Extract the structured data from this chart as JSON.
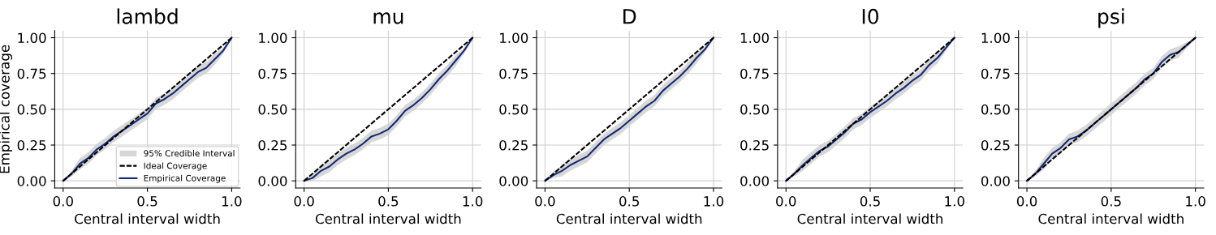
{
  "chart_data": [
    {
      "type": "line",
      "title": "lambd",
      "xlabel": "Central interval width",
      "ylabel": "Empirical coverage",
      "xlim": [
        -0.05,
        1.05
      ],
      "ylim": [
        -0.05,
        1.05
      ],
      "xticks": [
        {
          "value": 0,
          "label": "0.0"
        },
        {
          "value": 0.5,
          "label": "0.5"
        },
        {
          "value": 1,
          "label": "1.0"
        }
      ],
      "yticks": [
        {
          "value": 0,
          "label": "0.00"
        },
        {
          "value": 0.25,
          "label": "0.25"
        },
        {
          "value": 0.5,
          "label": "0.50"
        },
        {
          "value": 0.75,
          "label": "0.75"
        },
        {
          "value": 1,
          "label": "1.00"
        }
      ],
      "grid": true,
      "legend": "bottom right",
      "annotations": [
        "95% Credible Interval"
      ],
      "series": [
        {
          "name": "Ideal Coverage",
          "color": "#000000",
          "line_style": "dashed",
          "x": [
            0,
            1
          ],
          "values": [
            0,
            1
          ]
        },
        {
          "name": "Empirical Coverage",
          "color": "#132a74",
          "line_style": "solid",
          "x": [
            0,
            0.05,
            0.1,
            0.15,
            0.2,
            0.25,
            0.3,
            0.35,
            0.4,
            0.45,
            0.5,
            0.55,
            0.6,
            0.65,
            0.7,
            0.75,
            0.8,
            0.85,
            0.9,
            0.95,
            1
          ],
          "values": [
            0,
            0.05,
            0.12,
            0.16,
            0.22,
            0.26,
            0.31,
            0.35,
            0.39,
            0.43,
            0.47,
            0.54,
            0.57,
            0.61,
            0.66,
            0.71,
            0.76,
            0.79,
            0.85,
            0.91,
            1
          ],
          "lower": [
            0,
            0.03,
            0.08,
            0.12,
            0.18,
            0.22,
            0.27,
            0.31,
            0.35,
            0.39,
            0.43,
            0.5,
            0.53,
            0.57,
            0.62,
            0.67,
            0.72,
            0.75,
            0.81,
            0.89,
            1
          ],
          "upper": [
            0,
            0.07,
            0.16,
            0.2,
            0.26,
            0.3,
            0.35,
            0.39,
            0.43,
            0.47,
            0.51,
            0.58,
            0.61,
            0.65,
            0.7,
            0.75,
            0.8,
            0.83,
            0.89,
            0.93,
            1
          ]
        }
      ]
    },
    {
      "type": "line",
      "title": "mu",
      "xlabel": "Central interval width",
      "xlim": [
        -0.05,
        1.05
      ],
      "ylim": [
        -0.05,
        1.05
      ],
      "xticks": [
        {
          "value": 0,
          "label": "0.0"
        },
        {
          "value": 0.5,
          "label": "0.5"
        },
        {
          "value": 1,
          "label": "1.0"
        }
      ],
      "yticks": [
        {
          "value": 0,
          "label": "0.00"
        },
        {
          "value": 0.25,
          "label": "0.25"
        },
        {
          "value": 0.5,
          "label": "0.50"
        },
        {
          "value": 0.75,
          "label": "0.75"
        },
        {
          "value": 1,
          "label": "1.00"
        }
      ],
      "grid": true,
      "series": [
        {
          "color": "#000000",
          "line_style": "dashed",
          "x": [
            0,
            1
          ],
          "values": [
            0,
            1
          ]
        },
        {
          "color": "#132a74",
          "line_style": "solid",
          "x": [
            0,
            0.05,
            0.1,
            0.15,
            0.2,
            0.25,
            0.3,
            0.35,
            0.4,
            0.45,
            0.5,
            0.55,
            0.6,
            0.65,
            0.7,
            0.75,
            0.8,
            0.85,
            0.9,
            0.95,
            1
          ],
          "values": [
            0,
            0.02,
            0.07,
            0.1,
            0.15,
            0.19,
            0.22,
            0.26,
            0.31,
            0.33,
            0.36,
            0.42,
            0.49,
            0.53,
            0.58,
            0.64,
            0.71,
            0.77,
            0.84,
            0.91,
            1
          ],
          "lower": [
            0,
            0,
            0.03,
            0.06,
            0.11,
            0.15,
            0.18,
            0.22,
            0.27,
            0.29,
            0.32,
            0.38,
            0.45,
            0.49,
            0.54,
            0.6,
            0.67,
            0.73,
            0.8,
            0.89,
            1
          ],
          "upper": [
            0,
            0.04,
            0.11,
            0.14,
            0.19,
            0.23,
            0.26,
            0.3,
            0.35,
            0.37,
            0.4,
            0.46,
            0.53,
            0.57,
            0.62,
            0.68,
            0.75,
            0.81,
            0.88,
            0.93,
            1
          ]
        }
      ]
    },
    {
      "type": "line",
      "title": "D",
      "xlabel": "Central interval width",
      "xlim": [
        -0.05,
        1.05
      ],
      "ylim": [
        -0.05,
        1.05
      ],
      "xticks": [
        {
          "value": 0,
          "label": "0.0"
        },
        {
          "value": 0.5,
          "label": "0.5"
        },
        {
          "value": 1,
          "label": "1.0"
        }
      ],
      "yticks": [
        {
          "value": 0,
          "label": "0.00"
        },
        {
          "value": 0.25,
          "label": "0.25"
        },
        {
          "value": 0.5,
          "label": "0.50"
        },
        {
          "value": 0.75,
          "label": "0.75"
        },
        {
          "value": 1,
          "label": "1.00"
        }
      ],
      "grid": true,
      "series": [
        {
          "color": "#000000",
          "line_style": "dashed",
          "x": [
            0,
            1
          ],
          "values": [
            0,
            1
          ]
        },
        {
          "color": "#132a74",
          "line_style": "solid",
          "x": [
            0,
            0.05,
            0.1,
            0.15,
            0.2,
            0.25,
            0.3,
            0.35,
            0.4,
            0.45,
            0.5,
            0.55,
            0.6,
            0.65,
            0.7,
            0.75,
            0.8,
            0.85,
            0.9,
            0.95,
            1
          ],
          "values": [
            0,
            0.04,
            0.07,
            0.11,
            0.14,
            0.17,
            0.23,
            0.29,
            0.33,
            0.37,
            0.42,
            0.47,
            0.52,
            0.56,
            0.63,
            0.68,
            0.73,
            0.79,
            0.86,
            0.92,
            1
          ],
          "lower": [
            0,
            0.02,
            0.03,
            0.07,
            0.1,
            0.13,
            0.19,
            0.25,
            0.29,
            0.33,
            0.38,
            0.43,
            0.48,
            0.52,
            0.59,
            0.64,
            0.69,
            0.75,
            0.82,
            0.9,
            1
          ],
          "upper": [
            0,
            0.06,
            0.11,
            0.15,
            0.18,
            0.21,
            0.27,
            0.33,
            0.37,
            0.41,
            0.46,
            0.51,
            0.56,
            0.6,
            0.67,
            0.72,
            0.77,
            0.83,
            0.9,
            0.94,
            1
          ]
        }
      ]
    },
    {
      "type": "line",
      "title": "I0",
      "xlabel": "Central interval width",
      "xlim": [
        -0.05,
        1.05
      ],
      "ylim": [
        -0.05,
        1.05
      ],
      "xticks": [
        {
          "value": 0,
          "label": "0.0"
        },
        {
          "value": 0.5,
          "label": "0.5"
        },
        {
          "value": 1,
          "label": "1.0"
        }
      ],
      "yticks": [
        {
          "value": 0,
          "label": "0.00"
        },
        {
          "value": 0.25,
          "label": "0.25"
        },
        {
          "value": 0.5,
          "label": "0.50"
        },
        {
          "value": 0.75,
          "label": "0.75"
        },
        {
          "value": 1,
          "label": "1.00"
        }
      ],
      "grid": true,
      "series": [
        {
          "color": "#000000",
          "line_style": "dashed",
          "x": [
            0,
            1
          ],
          "values": [
            0,
            1
          ]
        },
        {
          "color": "#132a74",
          "line_style": "solid",
          "x": [
            0,
            0.05,
            0.1,
            0.15,
            0.2,
            0.25,
            0.3,
            0.35,
            0.4,
            0.45,
            0.5,
            0.55,
            0.6,
            0.65,
            0.7,
            0.75,
            0.8,
            0.85,
            0.9,
            0.95,
            1
          ],
          "values": [
            0,
            0.05,
            0.11,
            0.16,
            0.21,
            0.24,
            0.29,
            0.34,
            0.4,
            0.43,
            0.48,
            0.52,
            0.56,
            0.61,
            0.65,
            0.7,
            0.74,
            0.81,
            0.86,
            0.93,
            1
          ],
          "lower": [
            0,
            0.03,
            0.07,
            0.12,
            0.17,
            0.2,
            0.25,
            0.3,
            0.36,
            0.39,
            0.44,
            0.48,
            0.52,
            0.57,
            0.61,
            0.66,
            0.7,
            0.77,
            0.82,
            0.91,
            1
          ],
          "upper": [
            0,
            0.07,
            0.15,
            0.2,
            0.25,
            0.28,
            0.33,
            0.38,
            0.44,
            0.47,
            0.52,
            0.56,
            0.6,
            0.65,
            0.69,
            0.74,
            0.78,
            0.85,
            0.9,
            0.95,
            1
          ]
        }
      ]
    },
    {
      "type": "line",
      "title": "psi",
      "xlabel": "Central interval width",
      "xlim": [
        -0.05,
        1.05
      ],
      "ylim": [
        -0.05,
        1.05
      ],
      "xticks": [
        {
          "value": 0,
          "label": "0.0"
        },
        {
          "value": 0.5,
          "label": "0.5"
        },
        {
          "value": 1,
          "label": "1.0"
        }
      ],
      "yticks": [
        {
          "value": 0,
          "label": "0.00"
        },
        {
          "value": 0.25,
          "label": "0.25"
        },
        {
          "value": 0.5,
          "label": "0.50"
        },
        {
          "value": 0.75,
          "label": "0.75"
        },
        {
          "value": 1,
          "label": "1.00"
        }
      ],
      "grid": true,
      "series": [
        {
          "color": "#000000",
          "line_style": "dashed",
          "x": [
            0,
            1
          ],
          "values": [
            0,
            1
          ]
        },
        {
          "color": "#132a74",
          "line_style": "solid",
          "x": [
            0,
            0.05,
            0.1,
            0.15,
            0.2,
            0.25,
            0.3,
            0.35,
            0.4,
            0.45,
            0.5,
            0.55,
            0.6,
            0.65,
            0.7,
            0.75,
            0.8,
            0.85,
            0.9,
            0.95,
            1
          ],
          "values": [
            0,
            0.05,
            0.12,
            0.19,
            0.23,
            0.29,
            0.31,
            0.35,
            0.4,
            0.45,
            0.5,
            0.55,
            0.6,
            0.65,
            0.71,
            0.75,
            0.83,
            0.88,
            0.9,
            0.95,
            1
          ],
          "lower": [
            0,
            0.03,
            0.08,
            0.15,
            0.19,
            0.25,
            0.27,
            0.31,
            0.36,
            0.41,
            0.46,
            0.51,
            0.56,
            0.61,
            0.67,
            0.71,
            0.79,
            0.84,
            0.86,
            0.93,
            1
          ],
          "upper": [
            0,
            0.07,
            0.16,
            0.23,
            0.27,
            0.33,
            0.35,
            0.39,
            0.44,
            0.49,
            0.54,
            0.59,
            0.64,
            0.69,
            0.75,
            0.79,
            0.87,
            0.92,
            0.94,
            0.97,
            1
          ]
        }
      ]
    }
  ]
}
